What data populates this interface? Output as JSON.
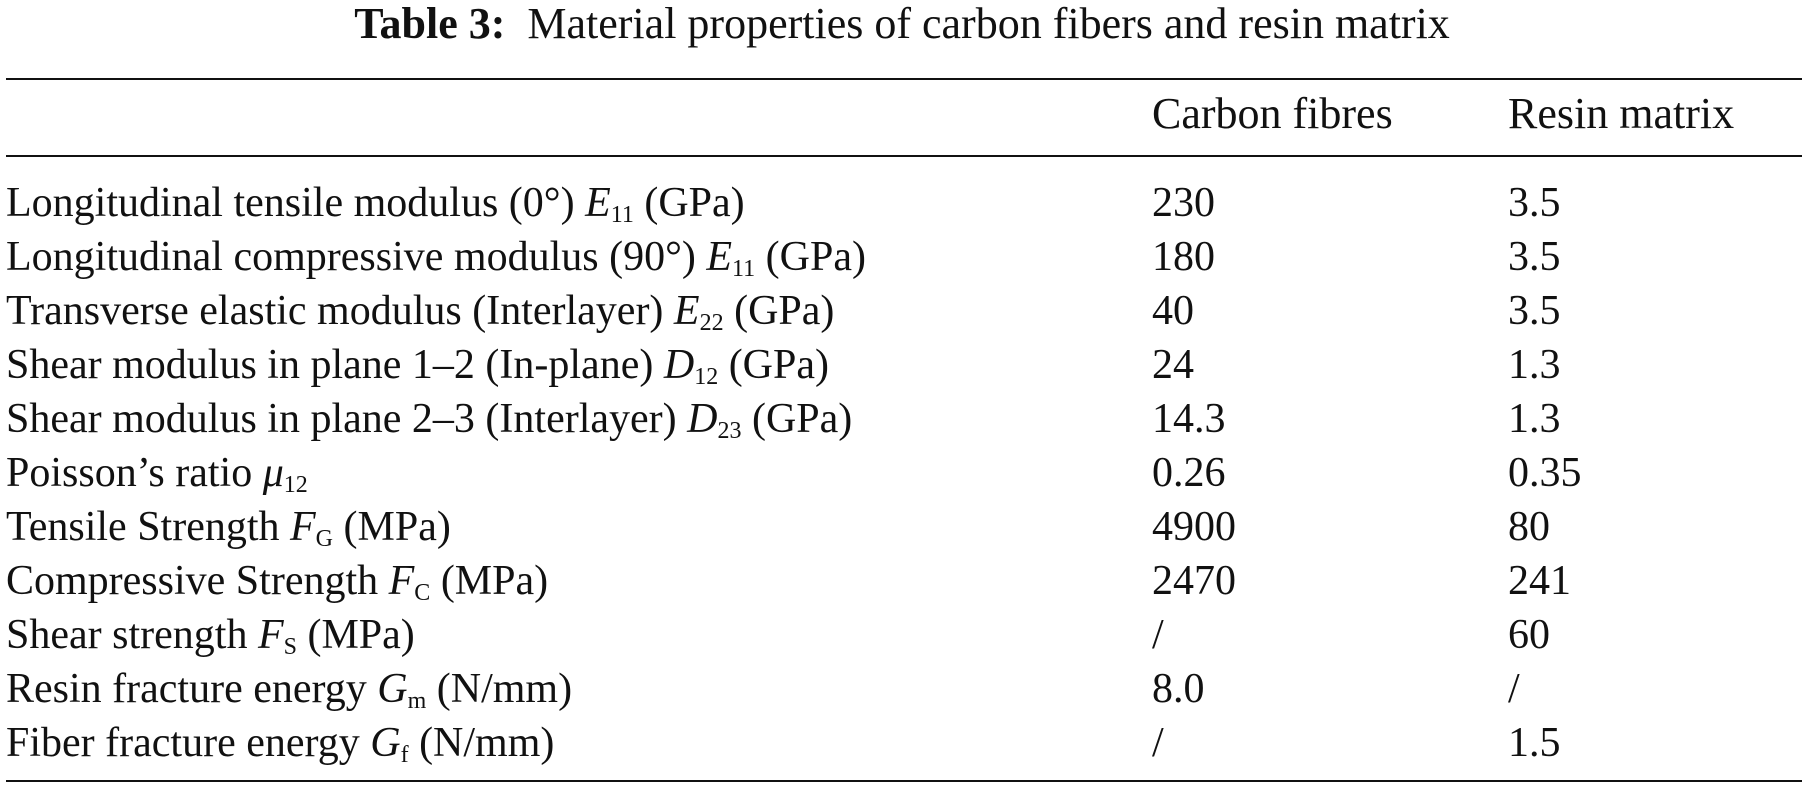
{
  "caption": {
    "label": "Table 3:",
    "text": "Material properties of carbon fibers and resin matrix"
  },
  "columns": [
    "",
    "Carbon fibres",
    "Resin matrix"
  ],
  "rows": [
    {
      "pre": "Longitudinal tensile modulus (0°) ",
      "sym": "E",
      "sub": "11",
      "post": " (GPa)",
      "carbon": "230",
      "resin": "3.5"
    },
    {
      "pre": "Longitudinal compressive modulus (90°) ",
      "sym": "E",
      "sub": "11",
      "post": " (GPa)",
      "carbon": "180",
      "resin": "3.5"
    },
    {
      "pre": "Transverse elastic modulus (Interlayer) ",
      "sym": "E",
      "sub": "22",
      "post": " (GPa)",
      "carbon": "40",
      "resin": "3.5"
    },
    {
      "pre": "Shear modulus in plane 1–2 (In-plane) ",
      "sym": "D",
      "sub": "12",
      "post": " (GPa)",
      "carbon": "24",
      "resin": "1.3"
    },
    {
      "pre": "Shear modulus in plane 2–3 (Interlayer) ",
      "sym": "D",
      "sub": "23",
      "post": " (GPa)",
      "carbon": "14.3",
      "resin": "1.3"
    },
    {
      "pre": "Poisson’s ratio ",
      "sym": "μ",
      "sub": "12",
      "post": "",
      "carbon": "0.26",
      "resin": "0.35"
    },
    {
      "pre": "Tensile Strength ",
      "sym": "F",
      "sub": "G",
      "post": " (MPa)",
      "carbon": "4900",
      "resin": "80"
    },
    {
      "pre": "Compressive Strength ",
      "sym": "F",
      "sub": "C",
      "post": " (MPa)",
      "carbon": "2470",
      "resin": "241"
    },
    {
      "pre": "Shear strength ",
      "sym": "F",
      "sub": "S",
      "post": " (MPa)",
      "carbon": "/",
      "resin": "60"
    },
    {
      "pre": "Resin fracture energy ",
      "sym": "G",
      "sub": "m",
      "post": " (N/mm)",
      "carbon": "8.0",
      "resin": "/"
    },
    {
      "pre": "Fiber fracture energy ",
      "sym": "G",
      "sub": "f",
      "post": " (N/mm)",
      "carbon": "/",
      "resin": "1.5"
    }
  ]
}
